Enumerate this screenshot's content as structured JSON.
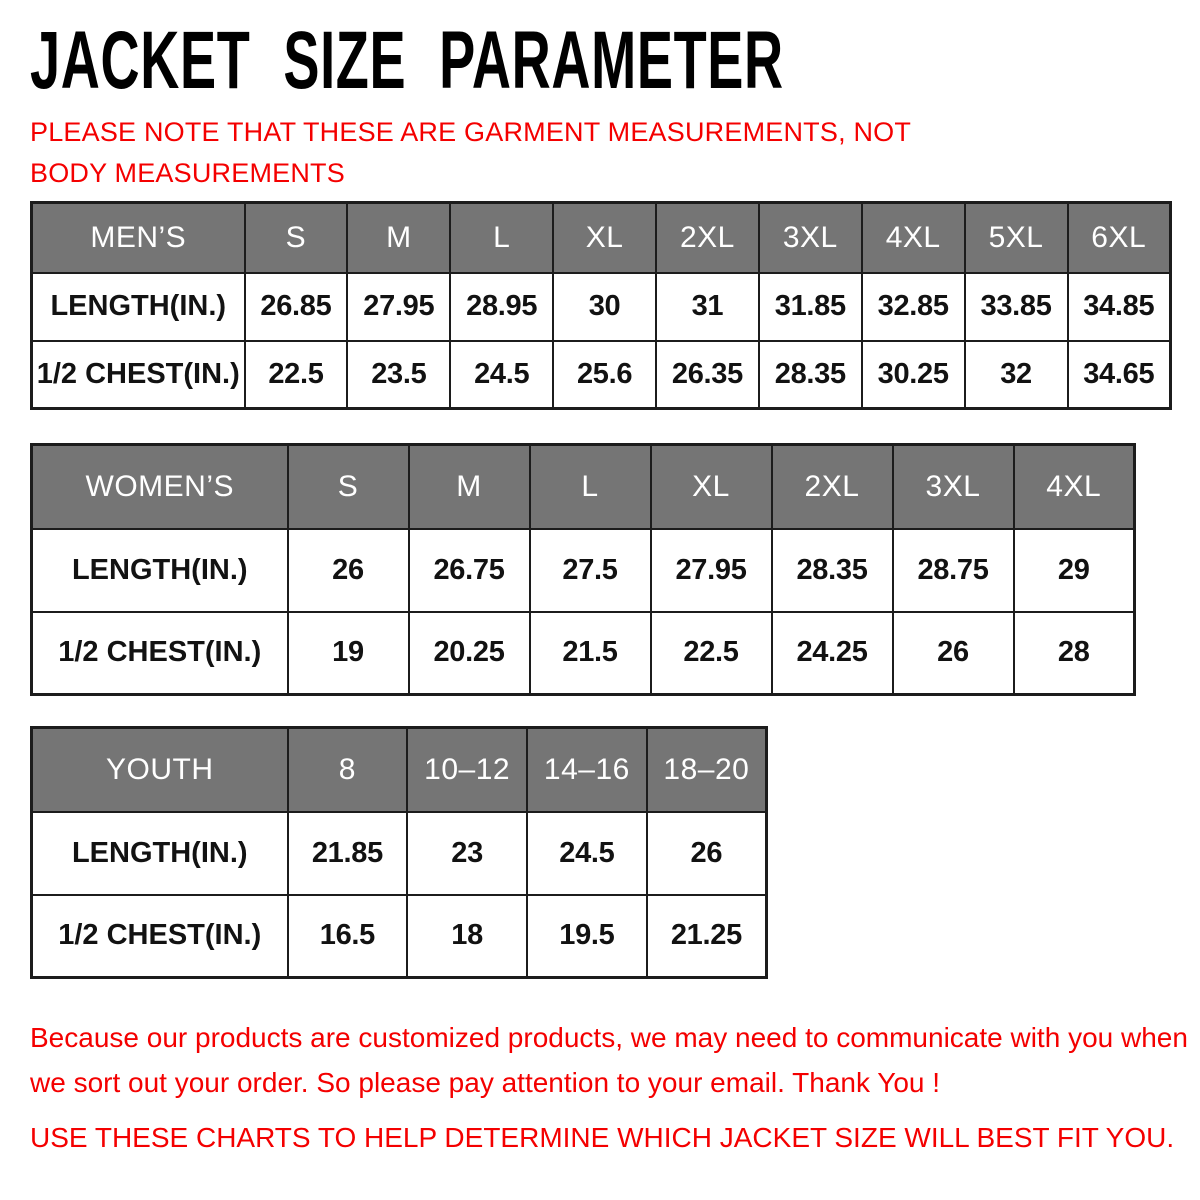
{
  "page": {
    "title": "JACKET SIZE PARAMETER",
    "note": "PLEASE NOTE THAT THESE ARE GARMENT MEASUREMENTS, NOT BODY MEASUREMENTS",
    "footer_paragraph": "Because our products are customized products, we may need to communicate with you when we sort out your order. So please pay attention to your email. Thank You !",
    "footer_emphasis": "USE THESE CHARTS TO HELP DETERMINE WHICH JACKET SIZE WILL BEST FIT YOU."
  },
  "colors": {
    "accent_red": "#f40000",
    "header_gray": "#757575",
    "header_text": "#ffffff",
    "table_border": "#1c1c1c",
    "title_black": "#000000"
  },
  "chart_data": [
    {
      "type": "table",
      "title": "MEN’S",
      "columns": [
        "S",
        "M",
        "L",
        "XL",
        "2XL",
        "3XL",
        "4XL",
        "5XL",
        "6XL"
      ],
      "rows": [
        {
          "label": "LENGTH(IN.)",
          "values": [
            "26.85",
            "27.95",
            "28.95",
            "30",
            "31",
            "31.85",
            "32.85",
            "33.85",
            "34.85"
          ]
        },
        {
          "label": "1/2 CHEST(IN.)",
          "values": [
            "22.5",
            "23.5",
            "24.5",
            "25.6",
            "26.35",
            "28.35",
            "30.25",
            "32",
            "34.65"
          ]
        }
      ]
    },
    {
      "type": "table",
      "title": "WOMEN’S",
      "columns": [
        "S",
        "M",
        "L",
        "XL",
        "2XL",
        "3XL",
        "4XL"
      ],
      "rows": [
        {
          "label": "LENGTH(IN.)",
          "values": [
            "26",
            "26.75",
            "27.5",
            "27.95",
            "28.35",
            "28.75",
            "29"
          ]
        },
        {
          "label": "1/2 CHEST(IN.)",
          "values": [
            "19",
            "20.25",
            "21.5",
            "22.5",
            "24.25",
            "26",
            "28"
          ]
        }
      ]
    },
    {
      "type": "table",
      "title": "YOUTH",
      "columns": [
        "8",
        "10–12",
        "14–16",
        "18–20"
      ],
      "rows": [
        {
          "label": "LENGTH(IN.)",
          "values": [
            "21.85",
            "23",
            "24.5",
            "26"
          ]
        },
        {
          "label": "1/2 CHEST(IN.)",
          "values": [
            "16.5",
            "18",
            "19.5",
            "21.25"
          ]
        }
      ]
    }
  ]
}
